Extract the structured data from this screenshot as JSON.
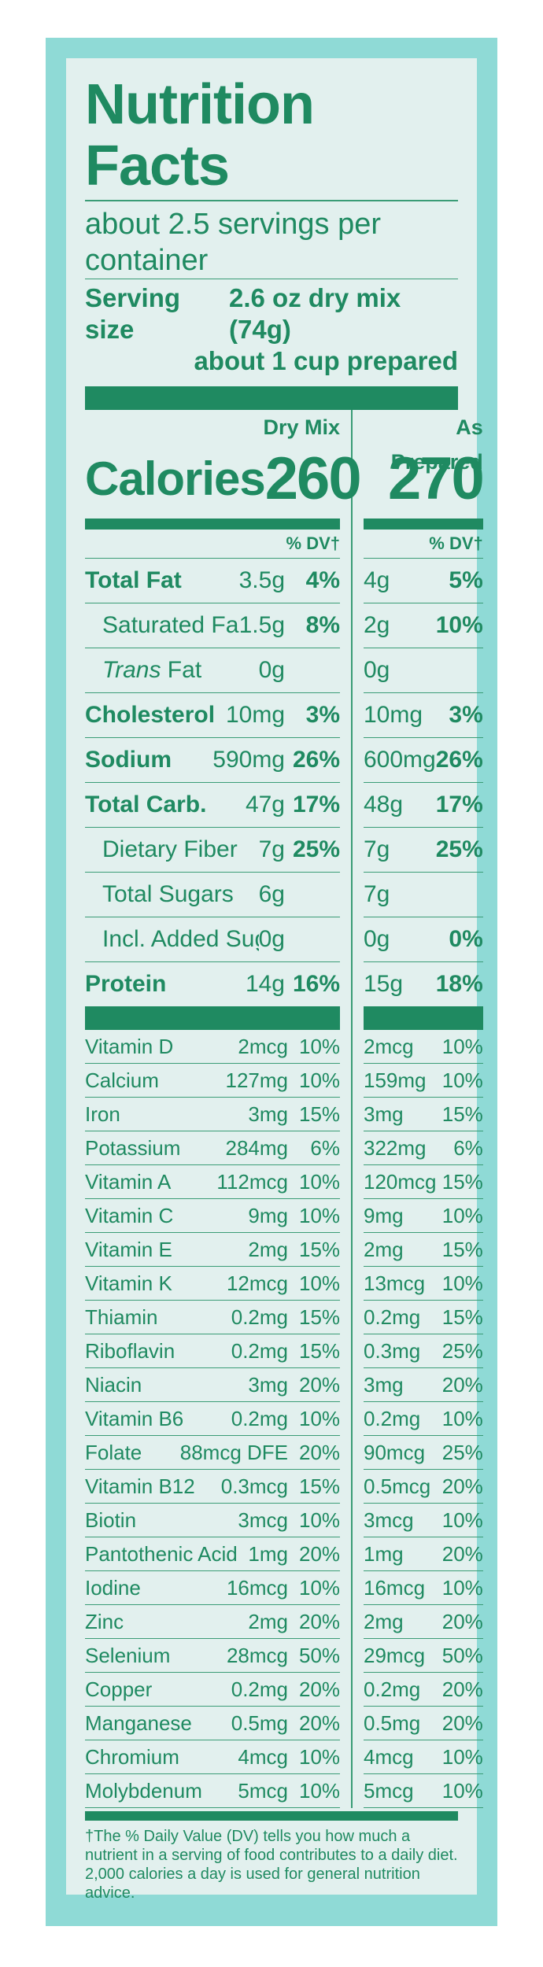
{
  "title": "Nutrition Facts",
  "servings_per_container": "about 2.5 servings per container",
  "serving_size_label": "Serving size",
  "serving_size_value": "2.6 oz dry mix (74g)",
  "serving_size_prepared": "about 1 cup prepared",
  "columns": {
    "dry": "Dry Mix",
    "prepared": "As Prepared"
  },
  "calories": {
    "label": "Calories",
    "dry": "260",
    "prepared": "270"
  },
  "dv_header": "% DV†",
  "nutrients": [
    {
      "name": "Total Fat",
      "dry_amount": "3.5g",
      "dry_dv": "4%",
      "prep_amount": "4g",
      "prep_dv": "5%"
    },
    {
      "name": "Saturated Fat",
      "dry_amount": "1.5g",
      "dry_dv": "8%",
      "prep_amount": "2g",
      "prep_dv": "10%"
    },
    {
      "name_italic": "Trans",
      "name_rest": " Fat",
      "dry_amount": "0g",
      "dry_dv": "",
      "prep_amount": "0g",
      "prep_dv": ""
    },
    {
      "name": "Cholesterol",
      "dry_amount": "10mg",
      "dry_dv": "3%",
      "prep_amount": "10mg",
      "prep_dv": "3%"
    },
    {
      "name": "Sodium",
      "dry_amount": "590mg",
      "dry_dv": "26%",
      "prep_amount": "600mg",
      "prep_dv": "26%"
    },
    {
      "name": "Total Carb.",
      "dry_amount": "47g",
      "dry_dv": "17%",
      "prep_amount": "48g",
      "prep_dv": "17%"
    },
    {
      "name": "Dietary Fiber",
      "dry_amount": "7g",
      "dry_dv": "25%",
      "prep_amount": "7g",
      "prep_dv": "25%"
    },
    {
      "name": "Total Sugars",
      "dry_amount": "6g",
      "dry_dv": "",
      "prep_amount": "7g",
      "prep_dv": ""
    },
    {
      "name": "Incl. Added Sugars",
      "dry_amount": "0g",
      "dry_dv": "",
      "prep_amount": "0g",
      "prep_dv": "0%"
    },
    {
      "name": "Protein",
      "dry_amount": "14g",
      "dry_dv": "16%",
      "prep_amount": "15g",
      "prep_dv": "18%"
    }
  ],
  "vitamins": [
    {
      "name": "Vitamin D",
      "dry_amount": "2mcg",
      "dry_dv": "10%",
      "prep_amount": "2mcg",
      "prep_dv": "10%"
    },
    {
      "name": "Calcium",
      "dry_amount": "127mg",
      "dry_dv": "10%",
      "prep_amount": "159mg",
      "prep_dv": "10%"
    },
    {
      "name": "Iron",
      "dry_amount": "3mg",
      "dry_dv": "15%",
      "prep_amount": "3mg",
      "prep_dv": "15%"
    },
    {
      "name": "Potassium",
      "dry_amount": "284mg",
      "dry_dv": "6%",
      "prep_amount": "322mg",
      "prep_dv": "6%"
    },
    {
      "name": "Vitamin A",
      "dry_amount": "112mcg",
      "dry_dv": "10%",
      "prep_amount": "120mcg",
      "prep_dv": "15%"
    },
    {
      "name": "Vitamin C",
      "dry_amount": "9mg",
      "dry_dv": "10%",
      "prep_amount": "9mg",
      "prep_dv": "10%"
    },
    {
      "name": "Vitamin E",
      "dry_amount": "2mg",
      "dry_dv": "15%",
      "prep_amount": "2mg",
      "prep_dv": "15%"
    },
    {
      "name": "Vitamin K",
      "dry_amount": "12mcg",
      "dry_dv": "10%",
      "prep_amount": "13mcg",
      "prep_dv": "10%"
    },
    {
      "name": "Thiamin",
      "dry_amount": "0.2mg",
      "dry_dv": "15%",
      "prep_amount": "0.2mg",
      "prep_dv": "15%"
    },
    {
      "name": "Riboflavin",
      "dry_amount": "0.2mg",
      "dry_dv": "15%",
      "prep_amount": "0.3mg",
      "prep_dv": "25%"
    },
    {
      "name": "Niacin",
      "dry_amount": "3mg",
      "dry_dv": "20%",
      "prep_amount": "3mg",
      "prep_dv": "20%"
    },
    {
      "name": "Vitamin B6",
      "dry_amount": "0.2mg",
      "dry_dv": "10%",
      "prep_amount": "0.2mg",
      "prep_dv": "10%"
    },
    {
      "name": "Folate",
      "dry_amount": "88mcg DFE",
      "dry_dv": "20%",
      "prep_amount": "90mcg",
      "prep_dv": "25%"
    },
    {
      "name": "Vitamin B12",
      "dry_amount": "0.3mcg",
      "dry_dv": "15%",
      "prep_amount": "0.5mcg",
      "prep_dv": "20%"
    },
    {
      "name": "Biotin",
      "dry_amount": "3mcg",
      "dry_dv": "10%",
      "prep_amount": "3mcg",
      "prep_dv": "10%"
    },
    {
      "name": "Pantothenic Acid",
      "dry_amount": "1mg",
      "dry_dv": "20%",
      "prep_amount": "1mg",
      "prep_dv": "20%"
    },
    {
      "name": "Iodine",
      "dry_amount": "16mcg",
      "dry_dv": "10%",
      "prep_amount": "16mcg",
      "prep_dv": "10%"
    },
    {
      "name": "Zinc",
      "dry_amount": "2mg",
      "dry_dv": "20%",
      "prep_amount": "2mg",
      "prep_dv": "20%"
    },
    {
      "name": "Selenium",
      "dry_amount": "28mcg",
      "dry_dv": "50%",
      "prep_amount": "29mcg",
      "prep_dv": "50%"
    },
    {
      "name": "Copper",
      "dry_amount": "0.2mg",
      "dry_dv": "20%",
      "prep_amount": "0.2mg",
      "prep_dv": "20%"
    },
    {
      "name": "Manganese",
      "dry_amount": "0.5mg",
      "dry_dv": "20%",
      "prep_amount": "0.5mg",
      "prep_dv": "20%"
    },
    {
      "name": "Chromium",
      "dry_amount": "4mcg",
      "dry_dv": "10%",
      "prep_amount": "4mcg",
      "prep_dv": "10%"
    },
    {
      "name": "Molybdenum",
      "dry_amount": "5mcg",
      "dry_dv": "10%",
      "prep_amount": "5mcg",
      "prep_dv": "10%"
    }
  ],
  "footnote": "†The % Daily Value (DV) tells you how much a nutrient in a serving of food contributes to a daily diet. 2,000 calories a day is used for general nutrition advice.",
  "colors": {
    "green": "#1f8a61",
    "border": "#8fdad6",
    "background": "#e2f0ee"
  }
}
